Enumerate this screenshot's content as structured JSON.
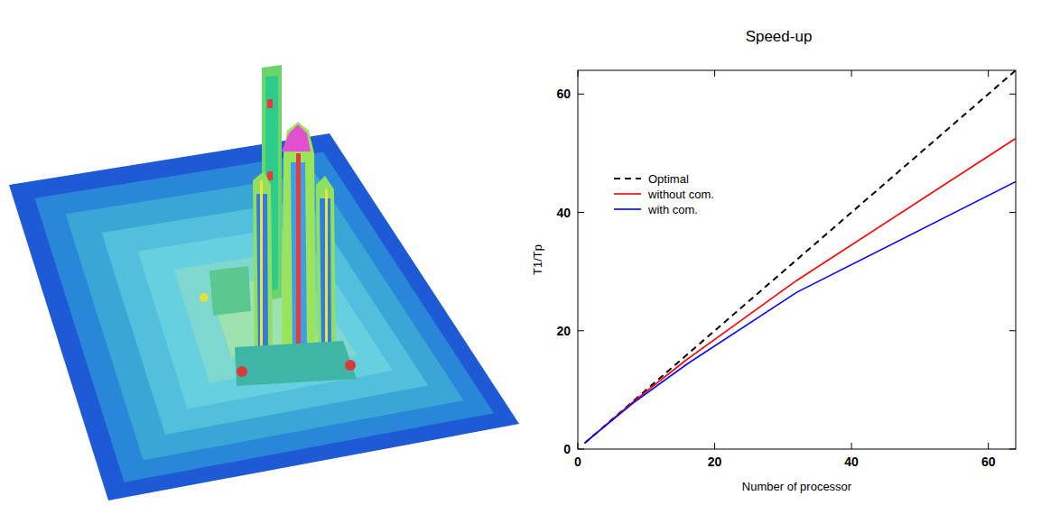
{
  "chart_data": {
    "type": "line",
    "title": "Speed-up",
    "x_label": "Number of processor",
    "y_label": "T1/Tp",
    "x": [
      1,
      2,
      4,
      8,
      16,
      32,
      64
    ],
    "xlim": [
      0,
      64
    ],
    "ylim": [
      0,
      64
    ],
    "xticks": [
      0,
      20,
      40,
      60
    ],
    "yticks": [
      0,
      20,
      40,
      60
    ],
    "grid": false,
    "legend": "upper left",
    "series": [
      {
        "name": "Optimal",
        "color": "#000000",
        "line_style": "dashed",
        "values": [
          1,
          2,
          4,
          8,
          16,
          32,
          64
        ]
      },
      {
        "name": "without com.",
        "color": "#ff0000",
        "line_style": "solid",
        "values": [
          1,
          2,
          4,
          7.9,
          15.2,
          28.5,
          52.5
        ]
      },
      {
        "name": "with com.",
        "color": "#0000ff",
        "line_style": "solid",
        "values": [
          1,
          2,
          3.9,
          7.7,
          14.4,
          26.5,
          45.2
        ]
      }
    ]
  }
}
